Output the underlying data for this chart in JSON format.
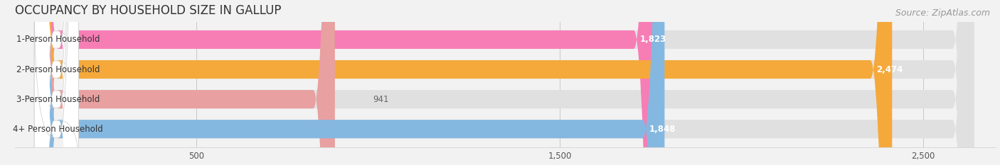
{
  "title": "OCCUPANCY BY HOUSEHOLD SIZE IN GALLUP",
  "source": "Source: ZipAtlas.com",
  "categories": [
    "1-Person Household",
    "2-Person Household",
    "3-Person Household",
    "4+ Person Household"
  ],
  "values": [
    1823,
    2474,
    941,
    1848
  ],
  "bar_colors": [
    "#f77db5",
    "#f5a93b",
    "#e8a0a0",
    "#85b8e0"
  ],
  "background_color": "#f2f2f2",
  "bar_bg_color": "#e0e0e0",
  "label_bg_color": "#ffffff",
  "xlim_max": 2700,
  "xticks": [
    500,
    1500,
    2500
  ],
  "title_fontsize": 12,
  "source_fontsize": 9,
  "figsize": [
    14.06,
    2.33
  ],
  "dpi": 100
}
